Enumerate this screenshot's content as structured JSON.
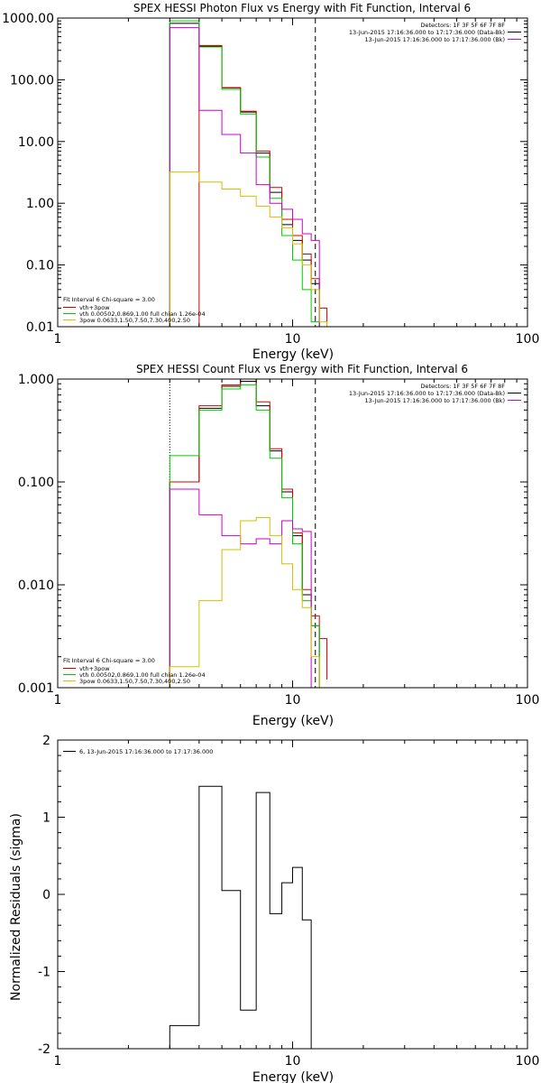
{
  "colors": {
    "total": "#000000",
    "fit_total": "#d40000",
    "vth": "#00cc00",
    "bpow": "#cc00cc",
    "bpow_alt": "#d4c000",
    "background": "#ffffff"
  },
  "chart_data": [
    {
      "type": "line",
      "title": "SPEX HESSI Photon Flux vs Energy with Fit Function, Interval 6",
      "xlabel": "Energy (keV)",
      "ylabel": "",
      "xscale": "log",
      "yscale": "log",
      "xlim": [
        1,
        100
      ],
      "ylim": [
        0.01,
        1000
      ],
      "xtick_labels": [
        "1",
        "10",
        "100"
      ],
      "ytick_labels": [
        "0.01",
        "0.10",
        "1.00",
        "10.00",
        "100.00",
        "1000.00"
      ],
      "vertical_lines": [
        {
          "x": 3.0,
          "style": "dotted"
        },
        {
          "x": 12.5,
          "style": "dashed"
        }
      ],
      "legend_top": [
        "Detectors: 1F 3F 5F 6F 7F 8F",
        "13-Jun-2015 17:16:36.000 to 17:17:36.000 (Data-Bk)",
        "13-Jun-2015 17:16:36.000 to 17:17:36.000 (Bk)"
      ],
      "legend_bottom": [
        "Fit Interval 6   Chi-square = 3.00",
        "vth+3pow",
        "vth 0.00502,0.869,1.00  full chian 1.26e-04",
        "3pow 0.0633,1.50,7.50,7.30,400,2.50"
      ],
      "bin_edges": [
        3.0,
        4.0,
        5.0,
        6.0,
        7.0,
        8.0,
        9.0,
        10.0,
        11.0,
        12.0,
        13.0,
        14.0
      ],
      "series": [
        {
          "key": "total",
          "values": [
            820,
            350,
            74,
            30,
            6.5,
            1.5,
            0.45,
            0.25,
            0.12,
            0.05
          ]
        },
        {
          "key": "fit_total",
          "values": [
            null,
            360,
            75,
            31,
            7.0,
            1.8,
            0.55,
            0.3,
            0.15,
            0.06,
            0.02
          ]
        },
        {
          "key": "vth",
          "values": [
            900,
            340,
            70,
            28,
            5.6,
            1.2,
            0.3,
            0.12,
            0.04,
            0.012
          ]
        },
        {
          "key": "bpow",
          "values": [
            700,
            32,
            13,
            6.5,
            2.0,
            1.0,
            0.8,
            0.55,
            0.32,
            0.25
          ]
        },
        {
          "key": "bpow_alt",
          "values": [
            3.2,
            2.2,
            1.7,
            1.3,
            0.9,
            0.6,
            0.4,
            0.22,
            0.1,
            0.04,
            0.012
          ]
        }
      ]
    },
    {
      "type": "line",
      "title": "SPEX HESSI Count Flux vs Energy with Fit Function, Interval 6",
      "xlabel": "Energy (keV)",
      "ylabel": "",
      "xscale": "log",
      "yscale": "log",
      "xlim": [
        1,
        100
      ],
      "ylim": [
        0.001,
        1.0
      ],
      "xtick_labels": [
        "1",
        "10",
        "100"
      ],
      "ytick_labels": [
        "0.001",
        "0.010",
        "0.100",
        "1.000"
      ],
      "vertical_lines": [
        {
          "x": 3.0,
          "style": "dotted"
        },
        {
          "x": 12.5,
          "style": "dashed"
        }
      ],
      "legend_top": [
        "Detectors: 1F 3F 5F 6F 7F 8F",
        "13-Jun-2015 17:16:36.000 to 17:17:36.000 (Data-Bk)",
        "13-Jun-2015 17:16:36.000 to 17:17:36.000 (Bk)"
      ],
      "legend_bottom": [
        "Fit Interval 6   Chi-square = 3.00",
        "vth+3pow",
        "vth 0.00502,0.869,1.00  full chian 1.26e-04",
        "3pow 0.0633,1.50,7.50,7.30,400,2.50"
      ],
      "bin_edges": [
        3.0,
        4.0,
        5.0,
        6.0,
        7.0,
        8.0,
        9.0,
        10.0,
        11.0,
        12.0,
        13.0,
        14.0
      ],
      "series": [
        {
          "key": "total",
          "values": [
            0.1,
            0.52,
            0.85,
            0.95,
            0.55,
            0.2,
            0.08,
            0.03,
            0.008,
            0.004
          ]
        },
        {
          "key": "fit_total",
          "values": [
            0.1,
            0.55,
            0.88,
            1.0,
            0.6,
            0.21,
            0.085,
            0.032,
            0.009,
            0.005,
            0.003,
            0.0012
          ]
        },
        {
          "key": "vth",
          "values": [
            0.18,
            0.5,
            0.8,
            0.88,
            0.5,
            0.17,
            0.07,
            0.025,
            0.007,
            0.004
          ]
        },
        {
          "key": "bpow",
          "values": [
            0.085,
            0.048,
            0.03,
            0.025,
            0.028,
            0.025,
            0.042,
            0.035,
            0.033
          ]
        },
        {
          "key": "bpow_alt",
          "values": [
            0.0016,
            0.007,
            0.022,
            0.042,
            0.045,
            0.03,
            0.016,
            0.009,
            0.006,
            0.002,
            0.001
          ]
        }
      ]
    },
    {
      "type": "line",
      "title": "",
      "xlabel": "Energy (keV)",
      "ylabel": "Normalized Residuals (sigma)",
      "xscale": "log",
      "yscale": "linear",
      "xlim": [
        1,
        100
      ],
      "ylim": [
        -2,
        2
      ],
      "xtick_labels": [
        "1",
        "10",
        "100"
      ],
      "ytick_labels": [
        "-2",
        "-1",
        "0",
        "1",
        "2"
      ],
      "legend": "6, 13-Jun-2015 17:16:36.000 to 17:17:36.000",
      "bin_edges": [
        3.0,
        4.0,
        5.0,
        6.0,
        7.0,
        8.0,
        9.0,
        10.0,
        11.0,
        12.0
      ],
      "series": [
        {
          "key": "total",
          "values": [
            -1.7,
            1.4,
            0.05,
            -1.5,
            1.32,
            -0.25,
            0.15,
            0.35,
            -0.33
          ]
        }
      ]
    }
  ]
}
